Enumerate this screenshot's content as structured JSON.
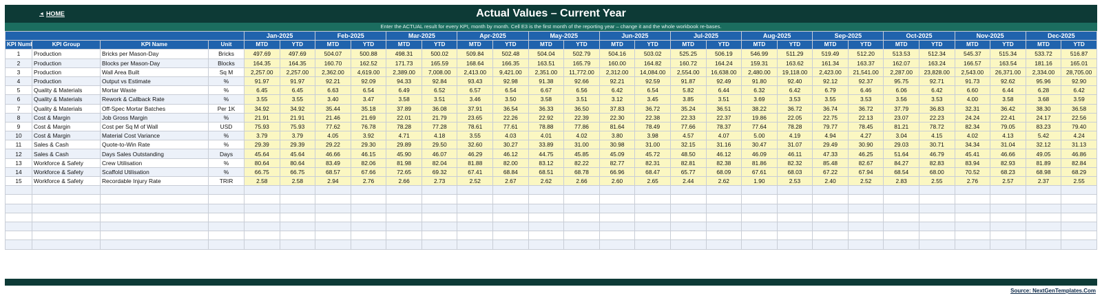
{
  "header": {
    "home_label": "HOME",
    "title": "Actual Values  –  Current Year",
    "instruction": "Enter the ACTUAL result for every KPI, month by month. Cell E3 is the first month of the reporting year – change it and the whole workbook re-bases."
  },
  "columns": {
    "kpi_number": "KPI Number",
    "kpi_group": "KPI Group",
    "kpi_name": "KPI Name",
    "unit": "Unit",
    "mtd": "MTD",
    "ytd": "YTD"
  },
  "months": [
    "Jan-2025",
    "Feb-2025",
    "Mar-2025",
    "Apr-2025",
    "May-2025",
    "Jun-2025",
    "Jul-2025",
    "Aug-2025",
    "Sep-2025",
    "Oct-2025",
    "Nov-2025",
    "Dec-2025"
  ],
  "rows": [
    {
      "num": "1",
      "group": "Production",
      "name": "Bricks per Mason-Day",
      "unit": "Bricks",
      "values": [
        "497.69",
        "497.69",
        "504.07",
        "500.88",
        "498.31",
        "500.02",
        "509.84",
        "502.48",
        "504.04",
        "502.79",
        "504.16",
        "503.02",
        "525.25",
        "506.19",
        "546.99",
        "511.29",
        "519.49",
        "512.20",
        "513.53",
        "512.34",
        "545.37",
        "515.34",
        "533.72",
        "516.87"
      ]
    },
    {
      "num": "2",
      "group": "Production",
      "name": "Blocks per Mason-Day",
      "unit": "Blocks",
      "values": [
        "164.35",
        "164.35",
        "160.70",
        "162.52",
        "171.73",
        "165.59",
        "168.64",
        "166.35",
        "163.51",
        "165.79",
        "160.00",
        "164.82",
        "160.72",
        "164.24",
        "159.31",
        "163.62",
        "161.34",
        "163.37",
        "162.07",
        "163.24",
        "166.57",
        "163.54",
        "181.16",
        "165.01"
      ]
    },
    {
      "num": "3",
      "group": "Production",
      "name": "Wall Area Built",
      "unit": "Sq M",
      "values": [
        "2,257.00",
        "2,257.00",
        "2,362.00",
        "4,619.00",
        "2,389.00",
        "7,008.00",
        "2,413.00",
        "9,421.00",
        "2,351.00",
        "11,772.00",
        "2,312.00",
        "14,084.00",
        "2,554.00",
        "16,638.00",
        "2,480.00",
        "19,118.00",
        "2,423.00",
        "21,541.00",
        "2,287.00",
        "23,828.00",
        "2,543.00",
        "26,371.00",
        "2,334.00",
        "28,705.00"
      ]
    },
    {
      "num": "4",
      "group": "Production",
      "name": "Output vs Estimate",
      "unit": "%",
      "values": [
        "91.97",
        "91.97",
        "92.21",
        "92.09",
        "94.33",
        "92.84",
        "93.43",
        "92.98",
        "91.38",
        "92.66",
        "92.21",
        "92.59",
        "91.87",
        "92.49",
        "91.80",
        "92.40",
        "92.12",
        "92.37",
        "95.75",
        "92.71",
        "91.73",
        "92.62",
        "95.96",
        "92.90"
      ]
    },
    {
      "num": "5",
      "group": "Quality & Materials",
      "name": "Mortar Waste",
      "unit": "%",
      "values": [
        "6.45",
        "6.45",
        "6.63",
        "6.54",
        "6.49",
        "6.52",
        "6.57",
        "6.54",
        "6.67",
        "6.56",
        "6.42",
        "6.54",
        "5.82",
        "6.44",
        "6.32",
        "6.42",
        "6.79",
        "6.46",
        "6.06",
        "6.42",
        "6.60",
        "6.44",
        "6.28",
        "6.42"
      ]
    },
    {
      "num": "6",
      "group": "Quality & Materials",
      "name": "Rework & Callback Rate",
      "unit": "%",
      "values": [
        "3.55",
        "3.55",
        "3.40",
        "3.47",
        "3.58",
        "3.51",
        "3.46",
        "3.50",
        "3.58",
        "3.51",
        "3.12",
        "3.45",
        "3.85",
        "3.51",
        "3.69",
        "3.53",
        "3.55",
        "3.53",
        "3.56",
        "3.53",
        "4.00",
        "3.58",
        "3.68",
        "3.59"
      ]
    },
    {
      "num": "7",
      "group": "Quality & Materials",
      "name": "Off-Spec Mortar Batches",
      "unit": "Per 1K",
      "values": [
        "34.92",
        "34.92",
        "35.44",
        "35.18",
        "37.89",
        "36.08",
        "37.91",
        "36.54",
        "36.33",
        "36.50",
        "37.83",
        "36.72",
        "35.24",
        "36.51",
        "38.22",
        "36.72",
        "36.74",
        "36.72",
        "37.79",
        "36.83",
        "32.31",
        "36.42",
        "38.30",
        "36.58"
      ]
    },
    {
      "num": "8",
      "group": "Cost & Margin",
      "name": "Job Gross Margin",
      "unit": "%",
      "values": [
        "21.91",
        "21.91",
        "21.46",
        "21.69",
        "22.01",
        "21.79",
        "23.65",
        "22.26",
        "22.92",
        "22.39",
        "22.30",
        "22.38",
        "22.33",
        "22.37",
        "19.86",
        "22.05",
        "22.75",
        "22.13",
        "23.07",
        "22.23",
        "24.24",
        "22.41",
        "24.17",
        "22.56"
      ]
    },
    {
      "num": "9",
      "group": "Cost & Margin",
      "name": "Cost per Sq M of Wall",
      "unit": "USD",
      "values": [
        "75.93",
        "75.93",
        "77.62",
        "76.78",
        "78.28",
        "77.28",
        "78.61",
        "77.61",
        "78.88",
        "77.86",
        "81.64",
        "78.49",
        "77.66",
        "78.37",
        "77.64",
        "78.28",
        "79.77",
        "78.45",
        "81.21",
        "78.72",
        "82.34",
        "79.05",
        "83.23",
        "79.40"
      ]
    },
    {
      "num": "10",
      "group": "Cost & Margin",
      "name": "Material Cost Variance",
      "unit": "%",
      "values": [
        "3.79",
        "3.79",
        "4.05",
        "3.92",
        "4.71",
        "4.18",
        "3.55",
        "4.03",
        "4.01",
        "4.02",
        "3.80",
        "3.98",
        "4.57",
        "4.07",
        "5.00",
        "4.19",
        "4.94",
        "4.27",
        "3.04",
        "4.15",
        "4.02",
        "4.13",
        "5.42",
        "4.24"
      ]
    },
    {
      "num": "11",
      "group": "Sales & Cash",
      "name": "Quote-to-Win Rate",
      "unit": "%",
      "values": [
        "29.39",
        "29.39",
        "29.22",
        "29.30",
        "29.89",
        "29.50",
        "32.60",
        "30.27",
        "33.89",
        "31.00",
        "30.98",
        "31.00",
        "32.15",
        "31.16",
        "30.47",
        "31.07",
        "29.49",
        "30.90",
        "29.03",
        "30.71",
        "34.34",
        "31.04",
        "32.12",
        "31.13"
      ]
    },
    {
      "num": "12",
      "group": "Sales & Cash",
      "name": "Days Sales Outstanding",
      "unit": "Days",
      "values": [
        "45.64",
        "45.64",
        "46.66",
        "46.15",
        "45.90",
        "46.07",
        "46.29",
        "46.12",
        "44.75",
        "45.85",
        "45.09",
        "45.72",
        "48.50",
        "46.12",
        "46.09",
        "46.11",
        "47.33",
        "46.25",
        "51.64",
        "46.79",
        "45.41",
        "46.66",
        "49.05",
        "46.86"
      ]
    },
    {
      "num": "13",
      "group": "Workforce & Safety",
      "name": "Crew Utilisation",
      "unit": "%",
      "values": [
        "80.64",
        "80.64",
        "83.49",
        "82.06",
        "81.98",
        "82.04",
        "81.88",
        "82.00",
        "83.12",
        "82.22",
        "82.77",
        "82.31",
        "82.81",
        "82.38",
        "81.86",
        "82.32",
        "85.48",
        "82.67",
        "84.27",
        "82.83",
        "83.94",
        "82.93",
        "81.89",
        "82.84"
      ]
    },
    {
      "num": "14",
      "group": "Workforce & Safety",
      "name": "Scaffold Utilisation",
      "unit": "%",
      "values": [
        "66.75",
        "66.75",
        "68.57",
        "67.66",
        "72.65",
        "69.32",
        "67.41",
        "68.84",
        "68.51",
        "68.78",
        "66.96",
        "68.47",
        "65.77",
        "68.09",
        "67.61",
        "68.03",
        "67.22",
        "67.94",
        "68.54",
        "68.00",
        "70.52",
        "68.23",
        "68.98",
        "68.29"
      ]
    },
    {
      "num": "15",
      "group": "Workforce & Safety",
      "name": "Recordable Injury Rate",
      "unit": "TRIR",
      "values": [
        "2.58",
        "2.58",
        "2.94",
        "2.76",
        "2.66",
        "2.73",
        "2.52",
        "2.67",
        "2.62",
        "2.66",
        "2.60",
        "2.65",
        "2.44",
        "2.62",
        "1.90",
        "2.53",
        "2.40",
        "2.52",
        "2.83",
        "2.55",
        "2.76",
        "2.57",
        "2.37",
        "2.55"
      ]
    }
  ],
  "empty_rows": 7,
  "footer": {
    "source_label": "Source: NextGenTemplates.Com"
  },
  "colors": {
    "dark_bar": "#0d3a36",
    "sub_bar": "#1b6d5f",
    "header_blue": "#2063ad",
    "value_yellow": "#fbf7c2",
    "band": "#ecf1f9"
  }
}
